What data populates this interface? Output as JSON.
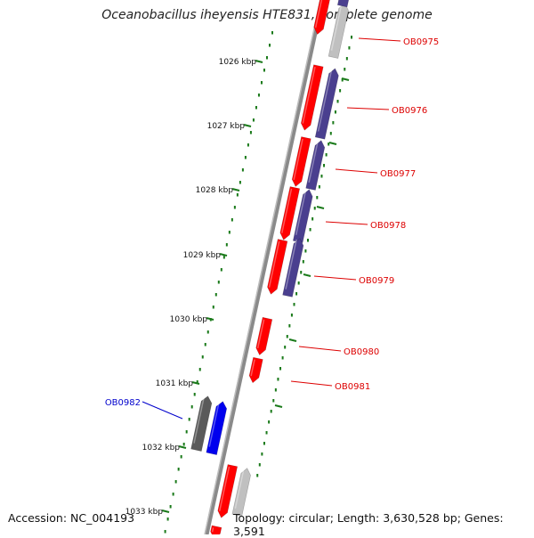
{
  "title": "Oceanobacillus iheyensis HTE831, complete genome",
  "accession": "Accession: NC_004193",
  "topology": "Topology: circular; Length: 3,630,528 bp; Genes: 3,591",
  "ruler": {
    "ticks": [
      {
        "label": "1026 kbp",
        "kbp": 1026
      },
      {
        "label": "1027 kbp",
        "kbp": 1027
      },
      {
        "label": "1028 kbp",
        "kbp": 1028
      },
      {
        "label": "1029 kbp",
        "kbp": 1029
      },
      {
        "label": "1030 kbp",
        "kbp": 1030
      },
      {
        "label": "1031 kbp",
        "kbp": 1031
      },
      {
        "label": "1032 kbp",
        "kbp": 1032
      },
      {
        "label": "1033 kbp",
        "kbp": 1033
      }
    ]
  },
  "genes": [
    {
      "name": "OB0975",
      "color": "#dd0000"
    },
    {
      "name": "OB0976",
      "color": "#dd0000"
    },
    {
      "name": "OB0977",
      "color": "#dd0000"
    },
    {
      "name": "OB0978",
      "color": "#dd0000"
    },
    {
      "name": "OB0979",
      "color": "#dd0000"
    },
    {
      "name": "OB0980",
      "color": "#dd0000"
    },
    {
      "name": "OB0981",
      "color": "#dd0000"
    },
    {
      "name": "OB0982",
      "color": "#0000cc"
    }
  ],
  "colors": {
    "forward_cds": "#ff0000",
    "cog_purple": "#4a3f8f",
    "cog_grey": "#c0c0c0",
    "reverse_cds": "#0000ee",
    "reverse_cog": "#5a5a5a",
    "backbone": "#8a8a8a",
    "tick": "#1a7a1a"
  }
}
